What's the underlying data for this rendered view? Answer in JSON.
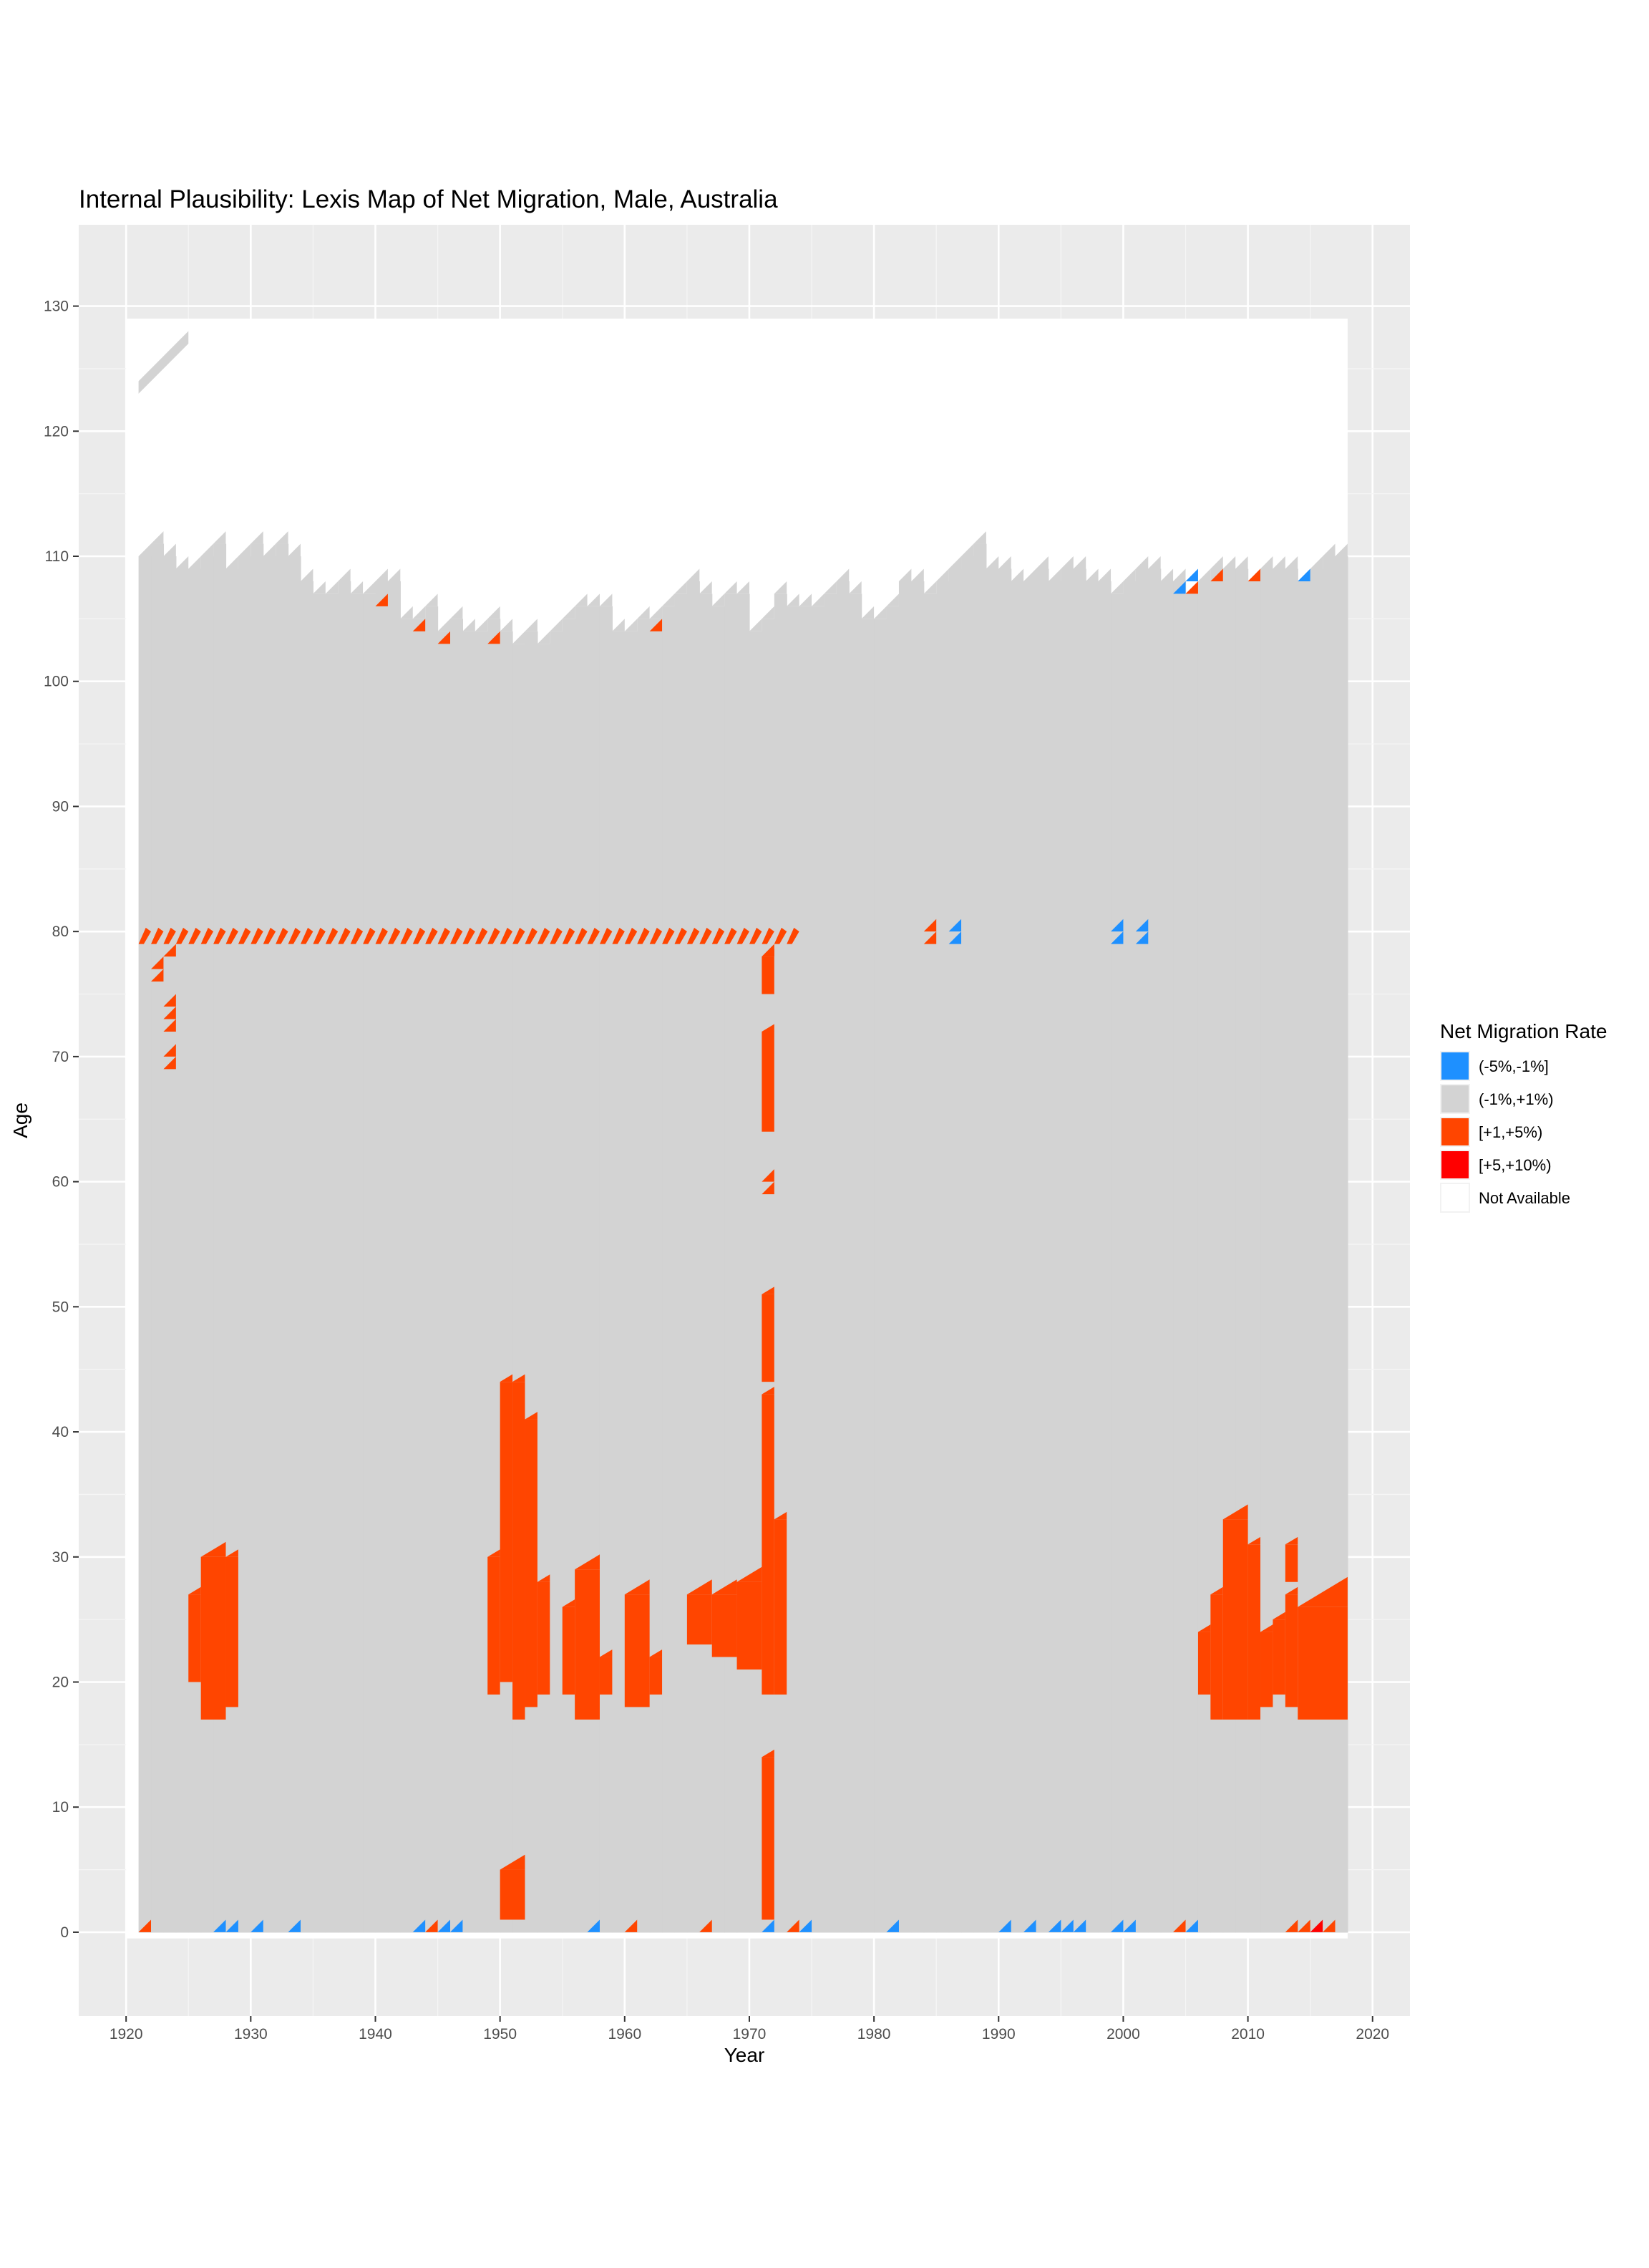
{
  "chart_data": {
    "type": "heatmap",
    "title": "Internal Plausibility: Lexis Map of Net Migration, Male, Australia",
    "xlabel": "Year",
    "ylabel": "Age",
    "xlim": [
      1916.2,
      2023.0
    ],
    "ylim": [
      -6.7,
      136.5
    ],
    "x_ticks": [
      1920,
      1930,
      1940,
      1950,
      1960,
      1970,
      1980,
      1990,
      2000,
      2010,
      2020
    ],
    "y_ticks": [
      0,
      10,
      20,
      30,
      40,
      50,
      60,
      70,
      80,
      90,
      100,
      110,
      120,
      130
    ],
    "grid": true,
    "legend": {
      "title": "Net Migration Rate",
      "position": "right",
      "entries": [
        {
          "label": "(-5%,-1%]",
          "color": "#1e90ff"
        },
        {
          "label": "(-1%,+1%)",
          "color": "#d3d3d3"
        },
        {
          "label": "[+1,+5%)",
          "color": "#ff4500"
        },
        {
          "label": "[+5,+10%)",
          "color": "#ff0000"
        },
        {
          "label": "Not Available",
          "color": "#ffffff"
        }
      ]
    },
    "domain": {
      "year_range": [
        1921,
        2017
      ],
      "max_age_by_year": [
        [
          1921,
          110
        ],
        [
          1922,
          111
        ],
        [
          1923,
          110
        ],
        [
          1924,
          109
        ],
        [
          1925,
          109
        ],
        [
          1926,
          110
        ],
        [
          1927,
          111
        ],
        [
          1928,
          109
        ],
        [
          1929,
          110
        ],
        [
          1930,
          111
        ],
        [
          1931,
          110
        ],
        [
          1932,
          111
        ],
        [
          1933,
          110
        ],
        [
          1934,
          108
        ],
        [
          1935,
          107
        ],
        [
          1936,
          107
        ],
        [
          1937,
          108
        ],
        [
          1938,
          107
        ],
        [
          1939,
          107
        ],
        [
          1940,
          108
        ],
        [
          1941,
          108
        ],
        [
          1942,
          105
        ],
        [
          1943,
          105
        ],
        [
          1944,
          106
        ],
        [
          1945,
          104
        ],
        [
          1946,
          105
        ],
        [
          1947,
          104
        ],
        [
          1948,
          104
        ],
        [
          1949,
          105
        ],
        [
          1950,
          104
        ],
        [
          1951,
          103
        ],
        [
          1952,
          104
        ],
        [
          1953,
          103
        ],
        [
          1954,
          104
        ],
        [
          1955,
          105
        ],
        [
          1956,
          106
        ],
        [
          1957,
          106
        ],
        [
          1958,
          106
        ],
        [
          1959,
          104
        ],
        [
          1960,
          104
        ],
        [
          1961,
          105
        ],
        [
          1962,
          105
        ],
        [
          1963,
          106
        ],
        [
          1964,
          107
        ],
        [
          1965,
          108
        ],
        [
          1966,
          107
        ],
        [
          1967,
          106
        ],
        [
          1968,
          107
        ],
        [
          1969,
          107
        ],
        [
          1970,
          104
        ],
        [
          1971,
          105
        ],
        [
          1972,
          107
        ],
        [
          1973,
          106
        ],
        [
          1974,
          106
        ],
        [
          1975,
          106
        ],
        [
          1976,
          107
        ],
        [
          1977,
          108
        ],
        [
          1978,
          107
        ],
        [
          1979,
          105
        ],
        [
          1980,
          105
        ],
        [
          1981,
          106
        ],
        [
          1982,
          108
        ],
        [
          1983,
          108
        ],
        [
          1984,
          107
        ],
        [
          1985,
          108
        ],
        [
          1986,
          109
        ],
        [
          1987,
          110
        ],
        [
          1988,
          111
        ],
        [
          1989,
          109
        ],
        [
          1990,
          109
        ],
        [
          1991,
          108
        ],
        [
          1992,
          108
        ],
        [
          1993,
          109
        ],
        [
          1994,
          108
        ],
        [
          1995,
          109
        ],
        [
          1996,
          109
        ],
        [
          1997,
          108
        ],
        [
          1998,
          108
        ],
        [
          1999,
          107
        ],
        [
          2000,
          108
        ],
        [
          2001,
          109
        ],
        [
          2002,
          109
        ],
        [
          2003,
          108
        ],
        [
          2004,
          108
        ],
        [
          2005,
          107
        ],
        [
          2006,
          108
        ],
        [
          2007,
          109
        ],
        [
          2008,
          109
        ],
        [
          2009,
          109
        ],
        [
          2010,
          108
        ],
        [
          2011,
          109
        ],
        [
          2012,
          109
        ],
        [
          2013,
          109
        ],
        [
          2014,
          108
        ],
        [
          2015,
          109
        ],
        [
          2016,
          110
        ],
        [
          2017,
          110
        ]
      ],
      "extra_band": {
        "years": [
          1921,
          1925
        ],
        "ages": [
          123,
          128
        ]
      }
    },
    "highlights": [
      {
        "x": 1921,
        "y": 0,
        "bin": "[+1,+5%)"
      },
      {
        "x": 1927,
        "y": 0,
        "bin": "(-5%,-1%]"
      },
      {
        "x": 1928,
        "y": 0,
        "bin": "(-5%,-1%]"
      },
      {
        "x": 1930,
        "y": 0,
        "bin": "(-5%,-1%]"
      },
      {
        "x": 1933,
        "y": 0,
        "bin": "(-5%,-1%]"
      },
      {
        "x": 1943,
        "y": 0,
        "bin": "(-5%,-1%]"
      },
      {
        "x": 1944,
        "y": 0,
        "bin": "[+1,+5%)"
      },
      {
        "x": 1945,
        "y": 0,
        "bin": "(-5%,-1%]"
      },
      {
        "x": 1946,
        "y": 0,
        "bin": "(-5%,-1%]"
      },
      {
        "x": 1957,
        "y": 0,
        "bin": "(-5%,-1%]"
      },
      {
        "x": 1960,
        "y": 0,
        "bin": "[+1,+5%)"
      },
      {
        "x": 1966,
        "y": 0,
        "bin": "[+1,+5%)"
      },
      {
        "x": 1971,
        "y": 0,
        "bin": "(-5%,-1%]"
      },
      {
        "x": 1973,
        "y": 0,
        "bin": "[+1,+5%)"
      },
      {
        "x": 1974,
        "y": 0,
        "bin": "(-5%,-1%]"
      },
      {
        "x": 1981,
        "y": 0,
        "bin": "(-5%,-1%]"
      },
      {
        "x": 1990,
        "y": 0,
        "bin": "(-5%,-1%]"
      },
      {
        "x": 1992,
        "y": 0,
        "bin": "(-5%,-1%]"
      },
      {
        "x": 1994,
        "y": 0,
        "bin": "(-5%,-1%]"
      },
      {
        "x": 1995,
        "y": 0,
        "bin": "(-5%,-1%]"
      },
      {
        "x": 1996,
        "y": 0,
        "bin": "(-5%,-1%]"
      },
      {
        "x": 1999,
        "y": 0,
        "bin": "(-5%,-1%]"
      },
      {
        "x": 2000,
        "y": 0,
        "bin": "(-5%,-1%]"
      },
      {
        "x": 2004,
        "y": 0,
        "bin": "[+1,+5%)"
      },
      {
        "x": 2005,
        "y": 0,
        "bin": "(-5%,-1%]"
      },
      {
        "x": 2013,
        "y": 0,
        "bin": "[+1,+5%)"
      },
      {
        "x": 2014,
        "y": 0,
        "bin": "[+1,+5%)"
      },
      {
        "x": 2015,
        "y": 0,
        "bin": "[+5,+10%)"
      },
      {
        "x": 2016,
        "y": 0,
        "bin": "[+1,+5%)"
      },
      {
        "x": 1922,
        "y": 76,
        "bin": "[+1,+5%)"
      },
      {
        "x": 1922,
        "y": 77,
        "bin": "[+1,+5%)"
      },
      {
        "x": 1923,
        "y": 69,
        "bin": "[+1,+5%)"
      },
      {
        "x": 1923,
        "y": 70,
        "bin": "[+1,+5%)"
      },
      {
        "x": 1923,
        "y": 72,
        "bin": "[+1,+5%)"
      },
      {
        "x": 1923,
        "y": 73,
        "bin": "[+1,+5%)"
      },
      {
        "x": 1923,
        "y": 74,
        "bin": "[+1,+5%)"
      },
      {
        "x": 1923,
        "y": 78,
        "bin": "[+1,+5%)"
      },
      {
        "x": 1940,
        "y": 106,
        "bin": "[+1,+5%)"
      },
      {
        "x": 1943,
        "y": 104,
        "bin": "[+1,+5%)"
      },
      {
        "x": 1945,
        "y": 103,
        "bin": "[+1,+5%)"
      },
      {
        "x": 1949,
        "y": 103,
        "bin": "[+1,+5%)"
      },
      {
        "x": 1962,
        "y": 104,
        "bin": "[+1,+5%)"
      },
      {
        "x": 1971,
        "y": 59,
        "bin": "[+1,+5%)"
      },
      {
        "x": 1971,
        "y": 60,
        "bin": "[+1,+5%)"
      },
      {
        "x": 1971,
        "y": 78,
        "bin": "[+1,+5%)"
      },
      {
        "x": 1984,
        "y": 79,
        "bin": "[+1,+5%)"
      },
      {
        "x": 1984,
        "y": 80,
        "bin": "[+1,+5%)"
      },
      {
        "x": 1986,
        "y": 79,
        "bin": "(-5%,-1%]"
      },
      {
        "x": 1986,
        "y": 80,
        "bin": "(-5%,-1%]"
      },
      {
        "x": 1999,
        "y": 79,
        "bin": "(-5%,-1%]"
      },
      {
        "x": 1999,
        "y": 80,
        "bin": "(-5%,-1%]"
      },
      {
        "x": 2001,
        "y": 79,
        "bin": "(-5%,-1%]"
      },
      {
        "x": 2001,
        "y": 80,
        "bin": "(-5%,-1%]"
      },
      {
        "x": 2004,
        "y": 107,
        "bin": "(-5%,-1%]"
      },
      {
        "x": 2005,
        "y": 107,
        "bin": "[+1,+5%)"
      },
      {
        "x": 2005,
        "y": 108,
        "bin": "(-5%,-1%]"
      },
      {
        "x": 2007,
        "y": 108,
        "bin": "[+1,+5%)"
      },
      {
        "x": 2010,
        "y": 108,
        "bin": "[+1,+5%)"
      },
      {
        "x": 2014,
        "y": 108,
        "bin": "(-5%,-1%]"
      }
    ],
    "blocks": [
      {
        "years": [
          1921,
          1972
        ],
        "ages": [
          79,
          80
        ],
        "bin": "[+1,+5%)",
        "triangles": true
      },
      {
        "years": [
          1973,
          1973
        ],
        "ages": [
          79,
          80
        ],
        "bin": "[+1,+5%)",
        "triangles": true
      },
      {
        "years": [
          1925,
          1925
        ],
        "ages": [
          20,
          26
        ],
        "bin": "[+1,+5%)"
      },
      {
        "years": [
          1926,
          1927
        ],
        "ages": [
          17,
          29
        ],
        "bin": "[+1,+5%)"
      },
      {
        "years": [
          1928,
          1928
        ],
        "ages": [
          18,
          29
        ],
        "bin": "[+1,+5%)"
      },
      {
        "years": [
          1949,
          1949
        ],
        "ages": [
          19,
          29
        ],
        "bin": "[+1,+5%)"
      },
      {
        "years": [
          1950,
          1950
        ],
        "ages": [
          20,
          43
        ],
        "bin": "[+1,+5%)"
      },
      {
        "years": [
          1951,
          1951
        ],
        "ages": [
          17,
          43
        ],
        "bin": "[+1,+5%)"
      },
      {
        "years": [
          1952,
          1952
        ],
        "ages": [
          18,
          40
        ],
        "bin": "[+1,+5%)"
      },
      {
        "years": [
          1953,
          1953
        ],
        "ages": [
          19,
          27
        ],
        "bin": "[+1,+5%)"
      },
      {
        "years": [
          1950,
          1951
        ],
        "ages": [
          1,
          4
        ],
        "bin": "[+1,+5%)"
      },
      {
        "years": [
          1955,
          1955
        ],
        "ages": [
          19,
          25
        ],
        "bin": "[+1,+5%)"
      },
      {
        "years": [
          1956,
          1957
        ],
        "ages": [
          17,
          28
        ],
        "bin": "[+1,+5%)"
      },
      {
        "years": [
          1958,
          1958
        ],
        "ages": [
          19,
          21
        ],
        "bin": "[+1,+5%)"
      },
      {
        "years": [
          1960,
          1961
        ],
        "ages": [
          18,
          26
        ],
        "bin": "[+1,+5%)"
      },
      {
        "years": [
          1962,
          1962
        ],
        "ages": [
          19,
          21
        ],
        "bin": "[+1,+5%)"
      },
      {
        "years": [
          1965,
          1966
        ],
        "ages": [
          23,
          26
        ],
        "bin": "[+1,+5%)"
      },
      {
        "years": [
          1967,
          1968
        ],
        "ages": [
          22,
          26
        ],
        "bin": "[+1,+5%)"
      },
      {
        "years": [
          1969,
          1970
        ],
        "ages": [
          21,
          27
        ],
        "bin": "[+1,+5%)"
      },
      {
        "years": [
          1971,
          1971
        ],
        "ages": [
          19,
          42
        ],
        "bin": "[+1,+5%)"
      },
      {
        "years": [
          1972,
          1972
        ],
        "ages": [
          19,
          32
        ],
        "bin": "[+1,+5%)"
      },
      {
        "years": [
          1971,
          1971
        ],
        "ages": [
          44,
          50
        ],
        "bin": "[+1,+5%)"
      },
      {
        "years": [
          1971,
          1971
        ],
        "ages": [
          64,
          71
        ],
        "bin": "[+1,+5%)"
      },
      {
        "years": [
          1971,
          1971
        ],
        "ages": [
          1,
          13
        ],
        "bin": "[+1,+5%)"
      },
      {
        "years": [
          1971,
          1971
        ],
        "ages": [
          75,
          77
        ],
        "bin": "[+1,+5%)"
      },
      {
        "years": [
          2006,
          2006
        ],
        "ages": [
          19,
          23
        ],
        "bin": "[+1,+5%)"
      },
      {
        "years": [
          2007,
          2007
        ],
        "ages": [
          17,
          26
        ],
        "bin": "[+1,+5%)"
      },
      {
        "years": [
          2008,
          2009
        ],
        "ages": [
          17,
          32
        ],
        "bin": "[+1,+5%)"
      },
      {
        "years": [
          2010,
          2010
        ],
        "ages": [
          17,
          30
        ],
        "bin": "[+1,+5%)"
      },
      {
        "years": [
          2011,
          2011
        ],
        "ages": [
          18,
          23
        ],
        "bin": "[+1,+5%)"
      },
      {
        "years": [
          2012,
          2012
        ],
        "ages": [
          19,
          24
        ],
        "bin": "[+1,+5%)"
      },
      {
        "years": [
          2013,
          2013
        ],
        "ages": [
          18,
          26
        ],
        "bin": "[+1,+5%)"
      },
      {
        "years": [
          2013,
          2013
        ],
        "ages": [
          28,
          30
        ],
        "bin": "[+1,+5%)"
      },
      {
        "years": [
          2014,
          2017
        ],
        "ages": [
          17,
          25
        ],
        "bin": "[+1,+5%)"
      }
    ]
  }
}
